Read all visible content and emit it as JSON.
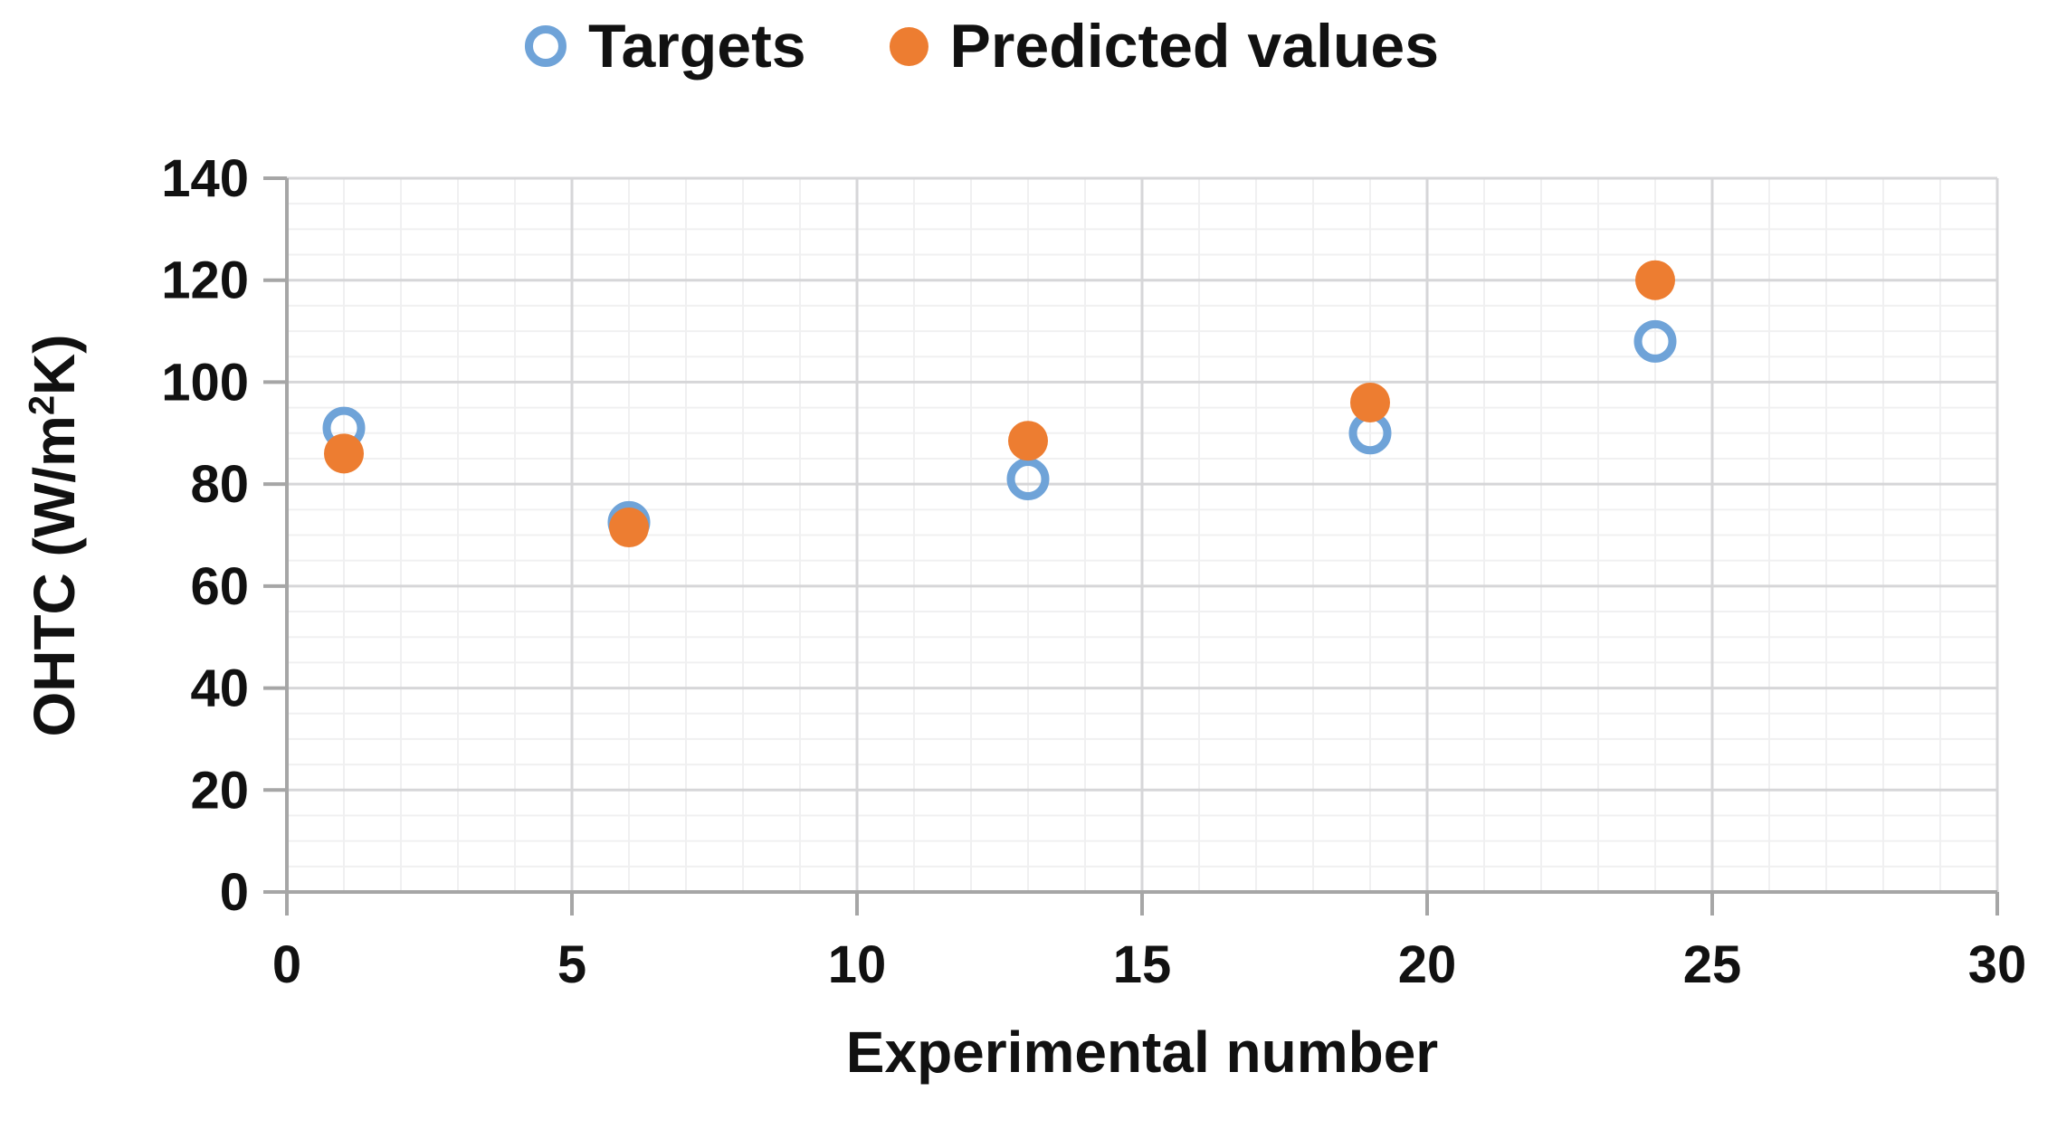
{
  "chart_data": {
    "type": "scatter",
    "title": "",
    "xlabel": "Experimental number",
    "ylabel": "OHTC (W/m²K)",
    "ylabel_parts": {
      "prefix": "OHTC (W/m",
      "superscript": "2",
      "suffix": "K)"
    },
    "x": [
      1,
      6,
      13,
      19,
      24
    ],
    "series": [
      {
        "name": "Targets",
        "marker": "open-circle",
        "color": "#6FA3D8",
        "values": [
          91,
          72.5,
          81,
          90,
          108
        ]
      },
      {
        "name": "Predicted values",
        "marker": "filled-circle",
        "color": "#ED7D31",
        "values": [
          86,
          71.5,
          88.5,
          96,
          120
        ]
      }
    ],
    "xlim": [
      0,
      30
    ],
    "ylim": [
      0,
      140
    ],
    "x_major_ticks": [
      0,
      5,
      10,
      15,
      20,
      25,
      30
    ],
    "y_major_ticks": [
      0,
      20,
      40,
      60,
      80,
      100,
      120,
      140
    ],
    "x_minor_step": 1,
    "y_minor_step": 5,
    "grid": true,
    "legend_position": "top-center",
    "colors": {
      "axis": "#A6A6A6",
      "grid_major": "#D6D6D8",
      "grid_minor": "#F0F0F1",
      "text": "#111111"
    }
  }
}
